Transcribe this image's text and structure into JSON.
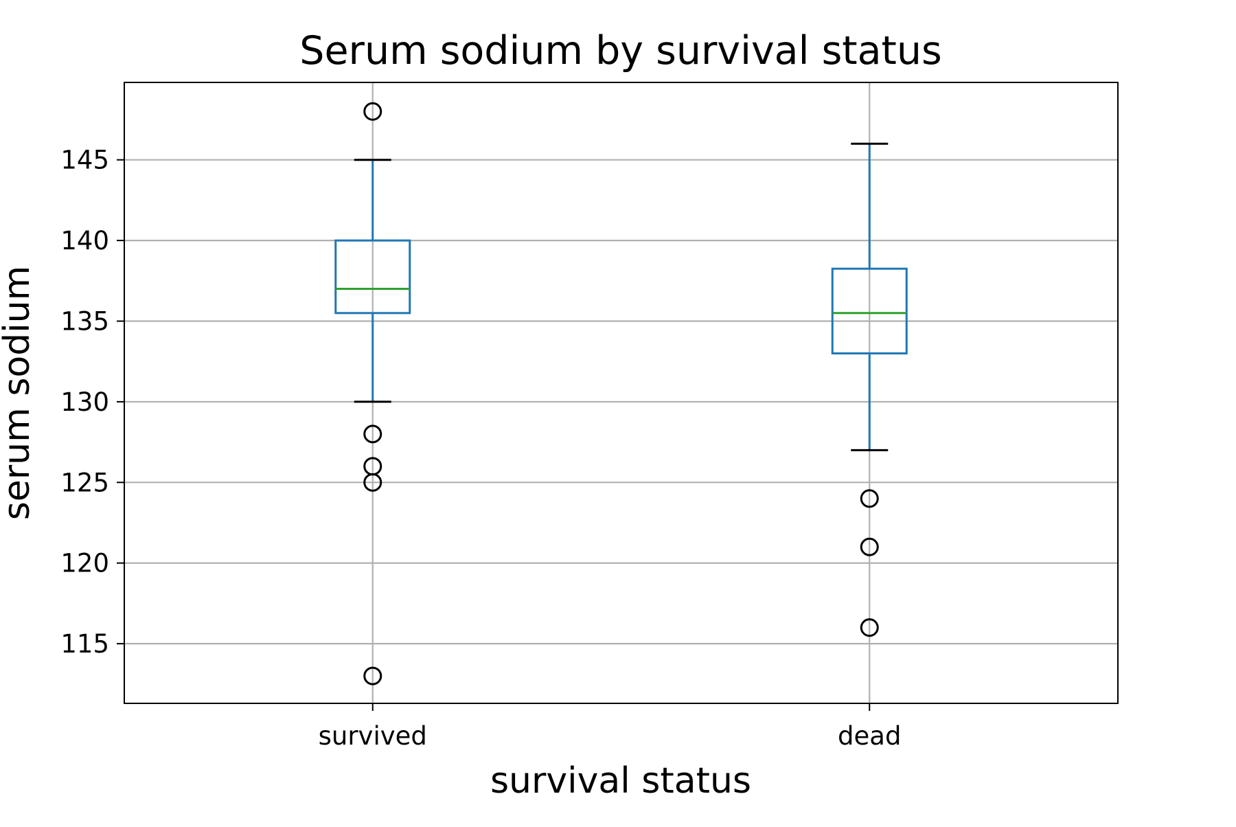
{
  "chart_data": {
    "type": "box",
    "title": "Serum sodium by survival status",
    "xlabel": "survival status",
    "ylabel": "serum sodium",
    "categories": [
      "survived",
      "dead"
    ],
    "ylim": [
      111.3,
      149.8
    ],
    "yticks": [
      115,
      120,
      125,
      130,
      135,
      140,
      145
    ],
    "ytick_labels": [
      "115",
      "120",
      "125",
      "130",
      "135",
      "140",
      "145"
    ],
    "grid": true,
    "boxes": [
      {
        "category": "survived",
        "whisker_low": 130,
        "q1": 135.5,
        "median": 137,
        "q3": 140,
        "whisker_high": 145,
        "outliers": [
          148,
          128,
          126,
          125,
          113
        ]
      },
      {
        "category": "dead",
        "whisker_low": 127,
        "q1": 133,
        "median": 135.5,
        "q3": 138.25,
        "whisker_high": 146,
        "outliers": [
          124,
          121,
          116
        ]
      }
    ],
    "colors": {
      "box": "#1f77b4",
      "median": "#2ca02c",
      "whisker_cap": "#000000",
      "outlier": "#000000",
      "grid": "#b0b0b0",
      "frame": "#000000"
    }
  }
}
